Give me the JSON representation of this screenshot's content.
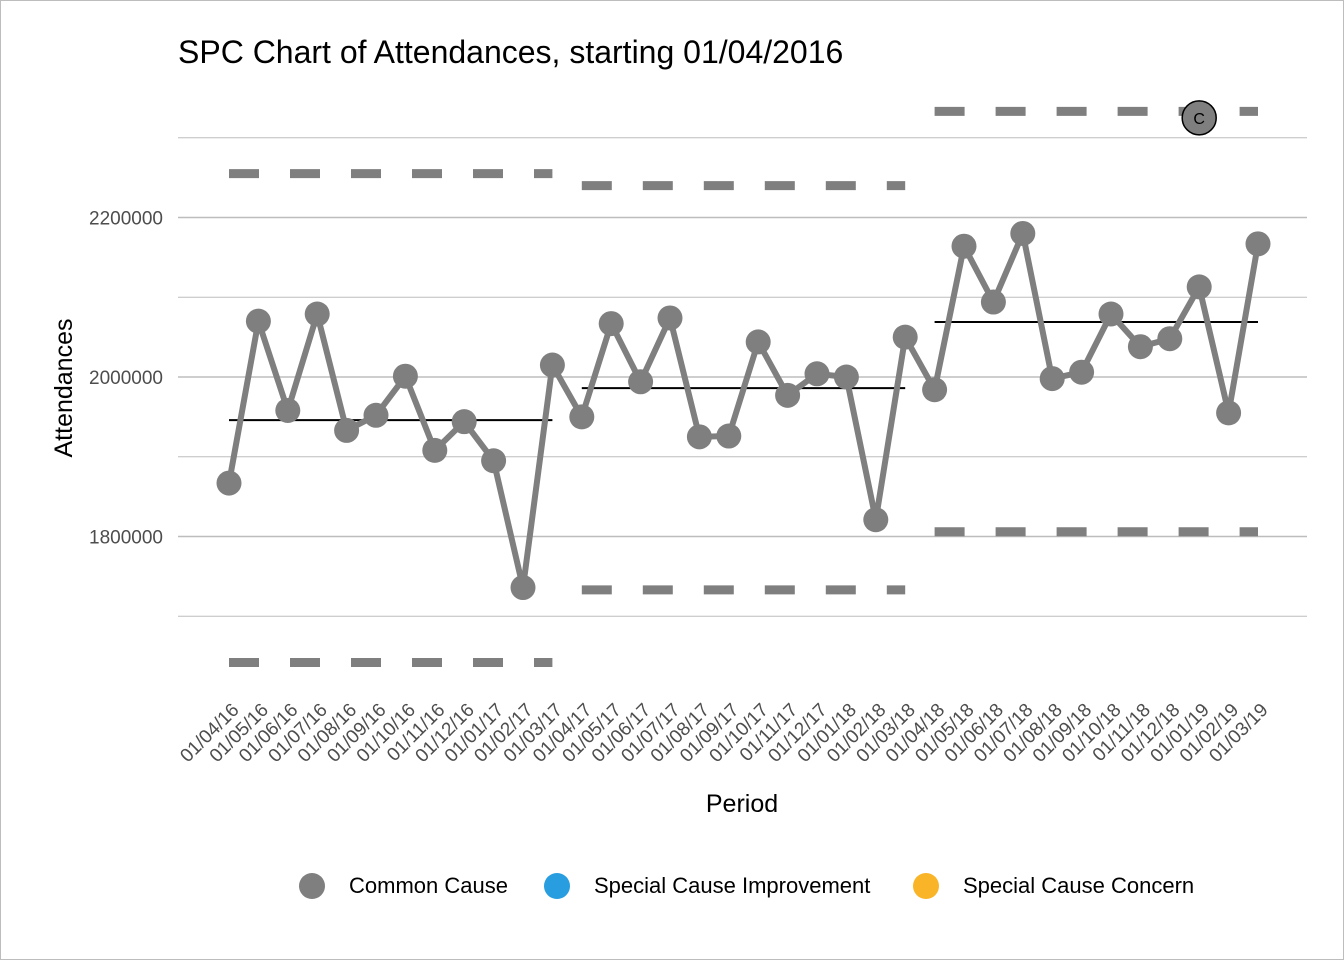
{
  "chart_data": {
    "type": "line",
    "title": "SPC Chart of Attendances, starting 01/04/2016",
    "xlabel": "Period",
    "ylabel": "Attendances",
    "ylim": [
      1600000,
      2400000
    ],
    "yticks": [
      1800000,
      2000000,
      2200000
    ],
    "yticks_labels": [
      "1800000",
      "2000000",
      "2200000"
    ],
    "grid": true,
    "legend_position": "bottom",
    "categories": [
      "01/04/16",
      "01/05/16",
      "01/06/16",
      "01/07/16",
      "01/08/16",
      "01/09/16",
      "01/10/16",
      "01/11/16",
      "01/12/16",
      "01/01/17",
      "01/02/17",
      "01/03/17",
      "01/04/17",
      "01/05/17",
      "01/06/17",
      "01/07/17",
      "01/08/17",
      "01/09/17",
      "01/10/17",
      "01/11/17",
      "01/12/17",
      "01/01/18",
      "01/02/18",
      "01/03/18",
      "01/04/18",
      "01/05/18",
      "01/06/18",
      "01/07/18",
      "01/08/18",
      "01/09/18",
      "01/10/18",
      "01/11/18",
      "01/12/18",
      "01/01/19",
      "01/02/19",
      "01/03/19"
    ],
    "values": [
      1867000,
      2070000,
      1958000,
      2079000,
      1933000,
      1952000,
      2001000,
      1908000,
      1944000,
      1895000,
      1736000,
      2015000,
      1950000,
      2067000,
      1994000,
      2074000,
      1925000,
      1926000,
      2044000,
      1977000,
      2004000,
      2000000,
      1821000,
      2050000,
      1984000,
      2164000,
      2094000,
      2180000,
      1998000,
      2006000,
      2079000,
      2038000,
      2048000,
      2113000,
      1955000,
      2167000
    ],
    "point_class": [
      "common",
      "common",
      "common",
      "common",
      "common",
      "common",
      "common",
      "common",
      "common",
      "common",
      "common",
      "common",
      "common",
      "common",
      "common",
      "common",
      "common",
      "common",
      "common",
      "common",
      "common",
      "common",
      "common",
      "common",
      "common",
      "common",
      "common",
      "common",
      "common",
      "common",
      "common",
      "common",
      "common",
      "common",
      "common",
      "common"
    ],
    "segments": [
      {
        "start": 0,
        "end": 11,
        "mean": 1946000,
        "ucl": 2255000,
        "lcl": 1642000
      },
      {
        "start": 12,
        "end": 23,
        "mean": 1986000,
        "ucl": 2240000,
        "lcl": 1733000
      },
      {
        "start": 24,
        "end": 35,
        "mean": 2069000,
        "ucl": 2333000,
        "lcl": 1806000
      }
    ],
    "annotations": [
      {
        "text": "C",
        "x": "01/01/19",
        "y": 2325000
      }
    ],
    "legend": [
      {
        "label": "Common Cause",
        "color": "#7f7f7f"
      },
      {
        "label": "Special Cause Improvement",
        "color": "#289de0"
      },
      {
        "label": "Special Cause Concern",
        "color": "#fab428"
      }
    ],
    "colors": {
      "series": "#7f7f7f",
      "mean": "#000000",
      "limits": "#7f7f7f",
      "grid": "#bdbdbd"
    }
  }
}
